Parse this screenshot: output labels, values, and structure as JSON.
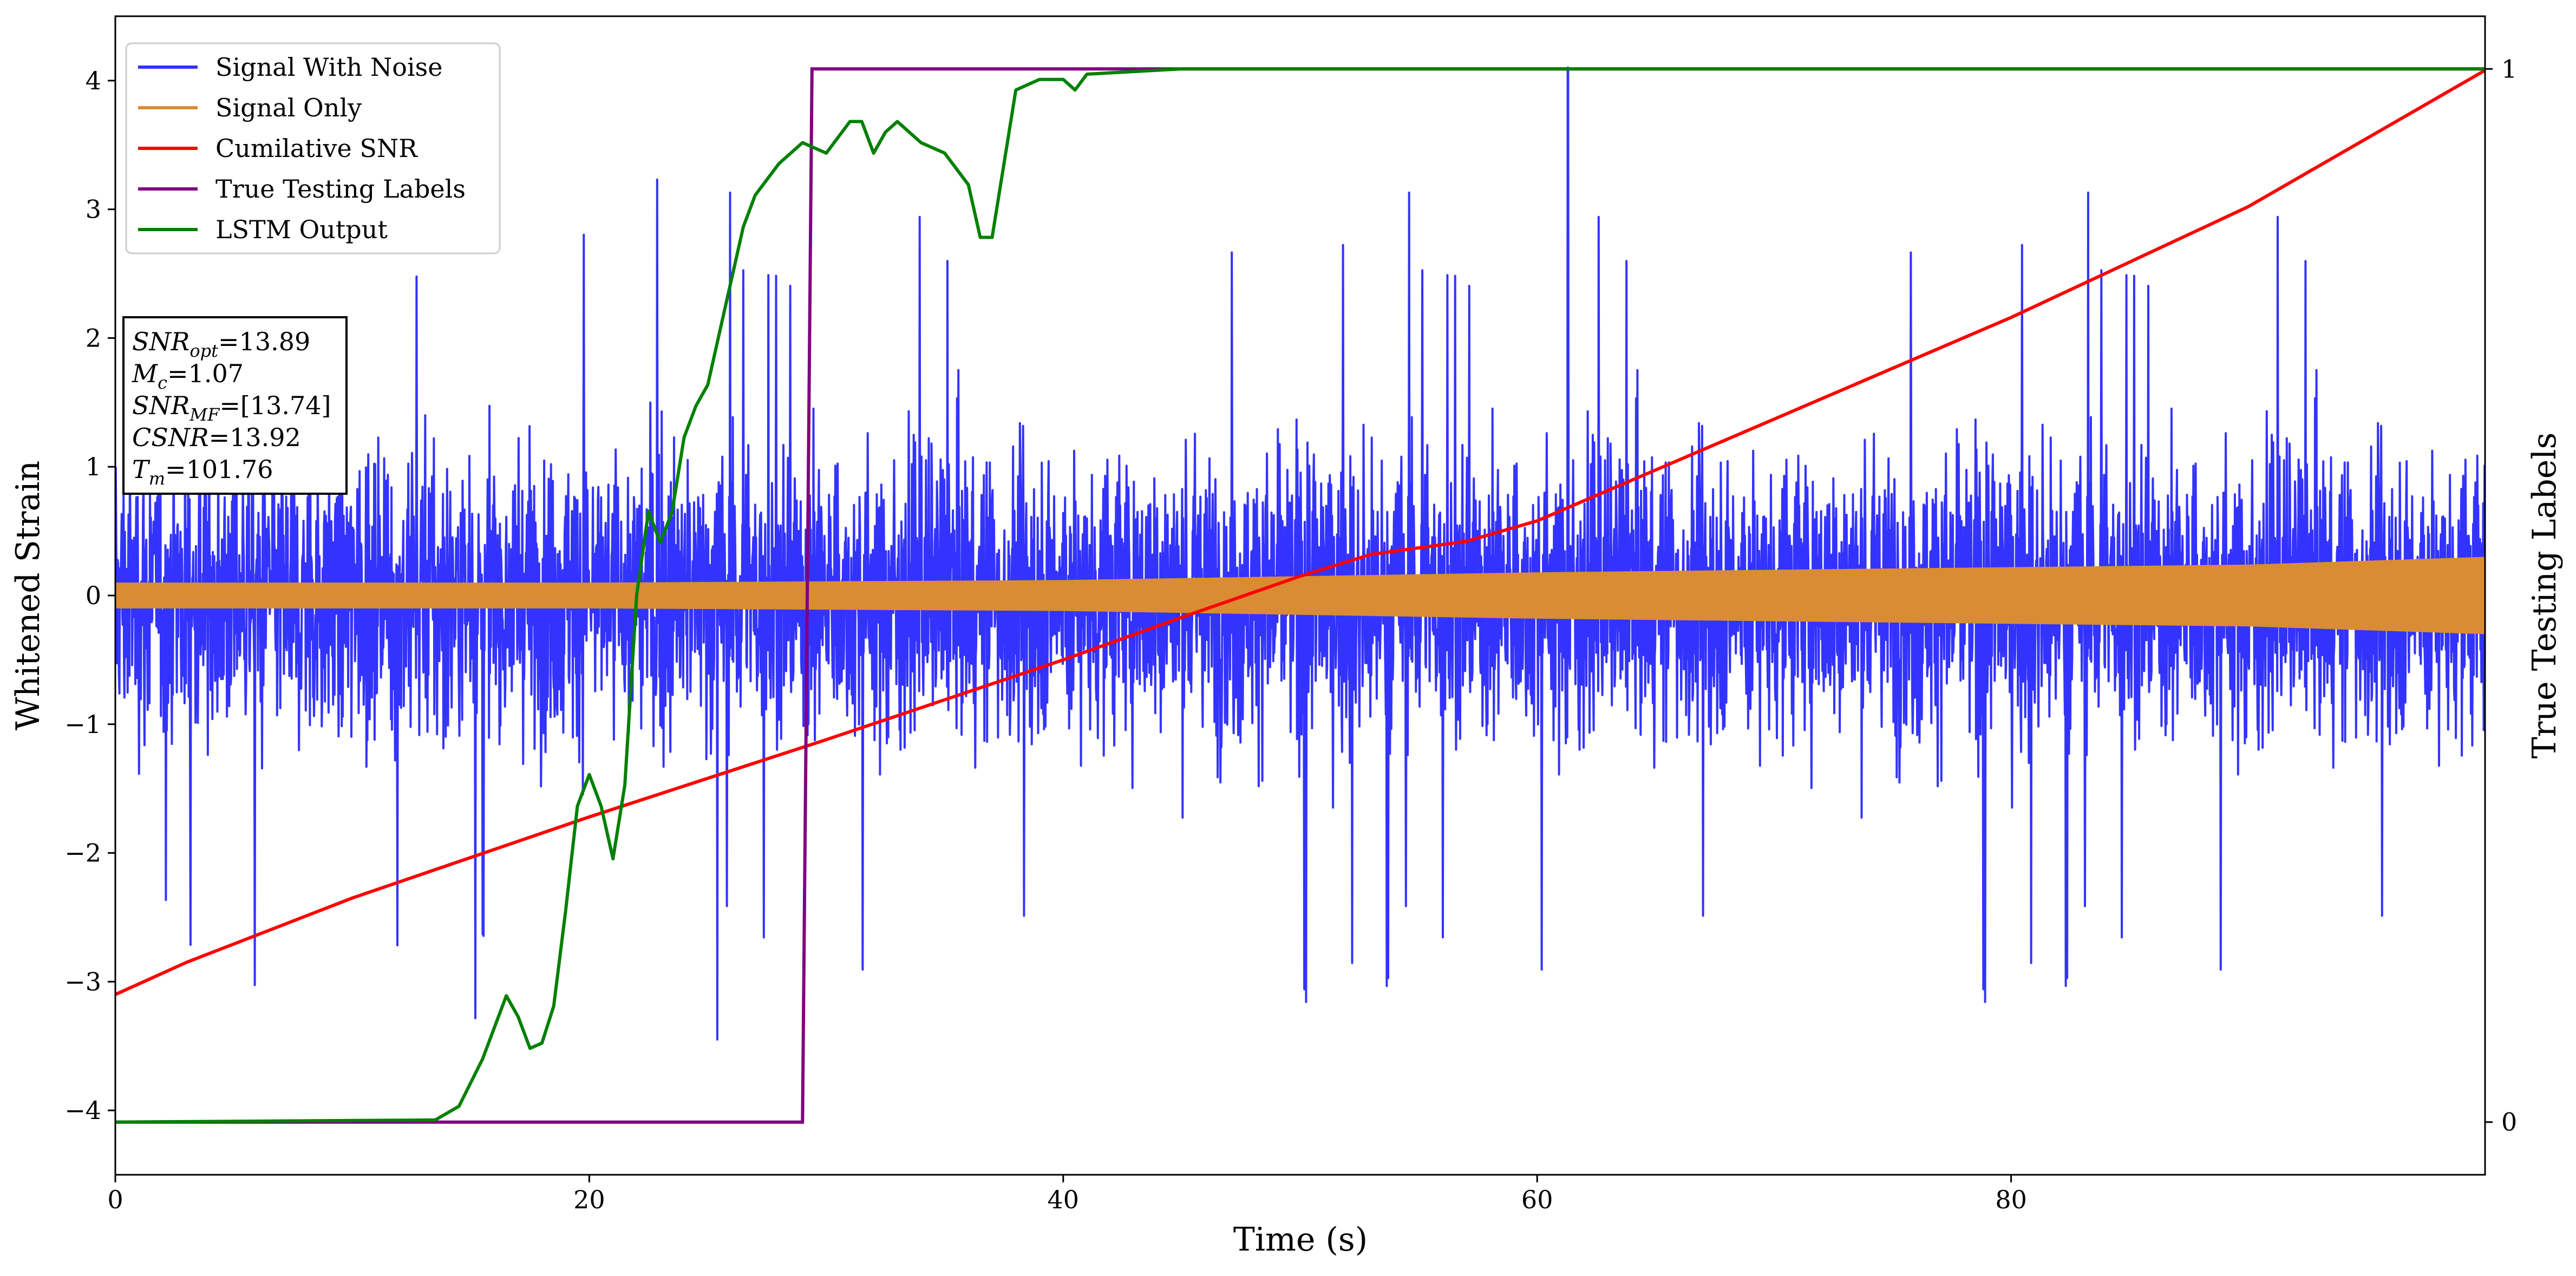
{
  "chart_data": {
    "type": "line",
    "xlabel": "Time (s)",
    "ylabel": "Whitened Strain",
    "ylabel_right": "True Testing Labels",
    "xlim": [
      0,
      100
    ],
    "ylim": [
      -4.5,
      4.5
    ],
    "ylim_right": [
      -0.05,
      1.05
    ],
    "x_ticks": [
      0,
      20,
      40,
      60,
      80
    ],
    "x_tick_labels": [
      "0",
      "20",
      "40",
      "60",
      "80"
    ],
    "y_ticks": [
      -4,
      -3,
      -2,
      -1,
      0,
      1,
      2,
      3,
      4
    ],
    "y_tick_labels": [
      "−4",
      "−3",
      "−2",
      "−1",
      "0",
      "1",
      "2",
      "3",
      "4"
    ],
    "y_right_ticks": [
      0,
      1
    ],
    "y_right_tick_labels": [
      "0",
      "1"
    ],
    "grid": false,
    "legend_position": "top-left",
    "annotation_position": "upper-left",
    "annotation": {
      "snr_opt": "=13.89",
      "mc": "=1.07",
      "snr_mf": "=[13.74]",
      "csnr": "=13.92",
      "tm": "=101.76"
    },
    "series": [
      {
        "name": "Signal With Noise",
        "color": "#3333ff",
        "axis": "left",
        "kind": "noise-envelope",
        "x_range": [
          0,
          100
        ],
        "typical_amplitude": 1.4,
        "max_peak": {
          "x": 61.3,
          "y": 4.1
        },
        "min_peak": {
          "x": 25.4,
          "y": -3.45
        }
      },
      {
        "name": "Signal Only",
        "color": "#d98c33",
        "axis": "left",
        "kind": "chirp-band",
        "x": [
          0,
          20,
          40,
          50,
          60,
          70,
          80,
          90,
          100
        ],
        "amplitude": [
          0.1,
          0.1,
          0.12,
          0.15,
          0.18,
          0.2,
          0.22,
          0.24,
          0.3
        ]
      },
      {
        "name": "Cumilative SNR",
        "color": "#ff0000",
        "axis": "left",
        "x": [
          0,
          3,
          10,
          20,
          30,
          40,
          45,
          50,
          53,
          55,
          57,
          60,
          70,
          80,
          90,
          100
        ],
        "y": [
          -3.1,
          -2.85,
          -2.35,
          -1.72,
          -1.12,
          -0.5,
          -0.17,
          0.15,
          0.32,
          0.37,
          0.42,
          0.58,
          1.37,
          2.16,
          3.02,
          4.08
        ]
      },
      {
        "name": "True Testing Labels",
        "color": "#800080",
        "axis": "right",
        "x": [
          0,
          29.0,
          29.4,
          100
        ],
        "y": [
          0,
          0,
          1,
          1
        ]
      },
      {
        "name": "LSTM Output",
        "color": "#008000",
        "axis": "right",
        "x": [
          0,
          13.5,
          14.5,
          15.5,
          16.5,
          17,
          17.5,
          18,
          18.5,
          19,
          19.5,
          20,
          20.5,
          21,
          21.5,
          22,
          22.5,
          23,
          23.5,
          24,
          24.5,
          25,
          25.5,
          26,
          26.5,
          27,
          28,
          29,
          30,
          31,
          31.5,
          32,
          32.5,
          33,
          34,
          35,
          36,
          36.5,
          37,
          38,
          39,
          40,
          40.5,
          41,
          45,
          50,
          100
        ],
        "y": [
          0,
          0.002,
          0.015,
          0.06,
          0.12,
          0.1,
          0.07,
          0.075,
          0.11,
          0.2,
          0.3,
          0.33,
          0.3,
          0.25,
          0.32,
          0.5,
          0.58,
          0.55,
          0.58,
          0.65,
          0.68,
          0.7,
          0.75,
          0.8,
          0.85,
          0.88,
          0.91,
          0.93,
          0.92,
          0.95,
          0.95,
          0.92,
          0.94,
          0.95,
          0.93,
          0.92,
          0.89,
          0.84,
          0.84,
          0.98,
          0.99,
          0.99,
          0.98,
          0.995,
          1.0,
          1.0,
          1.0
        ]
      }
    ]
  }
}
